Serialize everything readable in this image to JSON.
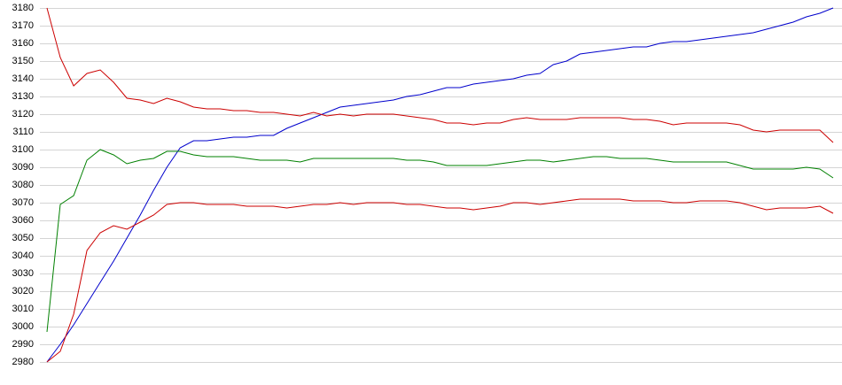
{
  "chart_data": {
    "type": "line",
    "ylim": [
      2980,
      3180
    ],
    "yticks": [
      2980,
      2990,
      3000,
      3010,
      3020,
      3030,
      3040,
      3050,
      3060,
      3070,
      3080,
      3090,
      3100,
      3110,
      3120,
      3130,
      3140,
      3150,
      3160,
      3170,
      3180
    ],
    "grid": true,
    "series": [
      {
        "color": "#0000cc",
        "values": [
          2980,
          2990,
          3001,
          3013,
          3025,
          3037,
          3050,
          3063,
          3077,
          3090,
          3101,
          3105,
          3105,
          3106,
          3107,
          3107,
          3108,
          3108,
          3112,
          3115,
          3118,
          3121,
          3124,
          3125,
          3126,
          3127,
          3128,
          3130,
          3131,
          3133,
          3135,
          3135,
          3137,
          3138,
          3139,
          3140,
          3142,
          3143,
          3148,
          3150,
          3154,
          3155,
          3156,
          3157,
          3158,
          3158,
          3160,
          3161,
          3161,
          3162,
          3163,
          3164,
          3165,
          3166,
          3168,
          3170,
          3172,
          3175,
          3177,
          3180
        ]
      },
      {
        "color": "#008000",
        "values": [
          2997,
          3069,
          3074,
          3094,
          3100,
          3097,
          3092,
          3094,
          3095,
          3099,
          3099,
          3097,
          3096,
          3096,
          3096,
          3095,
          3094,
          3094,
          3094,
          3093,
          3095,
          3095,
          3095,
          3095,
          3095,
          3095,
          3095,
          3094,
          3094,
          3093,
          3091,
          3091,
          3091,
          3091,
          3092,
          3093,
          3094,
          3094,
          3093,
          3094,
          3095,
          3096,
          3096,
          3095,
          3095,
          3095,
          3094,
          3093,
          3093,
          3093,
          3093,
          3093,
          3091,
          3089,
          3089,
          3089,
          3089,
          3090,
          3089,
          3084
        ]
      },
      {
        "color": "#cc0000",
        "values": [
          3180,
          3152,
          3136,
          3143,
          3145,
          3138,
          3129,
          3128,
          3126,
          3129,
          3127,
          3124,
          3123,
          3123,
          3122,
          3122,
          3121,
          3121,
          3120,
          3119,
          3121,
          3119,
          3120,
          3119,
          3120,
          3120,
          3120,
          3119,
          3118,
          3117,
          3115,
          3115,
          3114,
          3115,
          3115,
          3117,
          3118,
          3117,
          3117,
          3117,
          3118,
          3118,
          3118,
          3118,
          3117,
          3117,
          3116,
          3114,
          3115,
          3115,
          3115,
          3115,
          3114,
          3111,
          3110,
          3111,
          3111,
          3111,
          3111,
          3104
        ]
      },
      {
        "color": "#cc0000",
        "values": [
          2980,
          2986,
          3007,
          3043,
          3053,
          3057,
          3055,
          3059,
          3063,
          3069,
          3070,
          3070,
          3069,
          3069,
          3069,
          3068,
          3068,
          3068,
          3067,
          3068,
          3069,
          3069,
          3070,
          3069,
          3070,
          3070,
          3070,
          3069,
          3069,
          3068,
          3067,
          3067,
          3066,
          3067,
          3068,
          3070,
          3070,
          3069,
          3070,
          3071,
          3072,
          3072,
          3072,
          3072,
          3071,
          3071,
          3071,
          3070,
          3070,
          3071,
          3071,
          3071,
          3070,
          3068,
          3066,
          3067,
          3067,
          3067,
          3068,
          3064
        ]
      }
    ]
  }
}
